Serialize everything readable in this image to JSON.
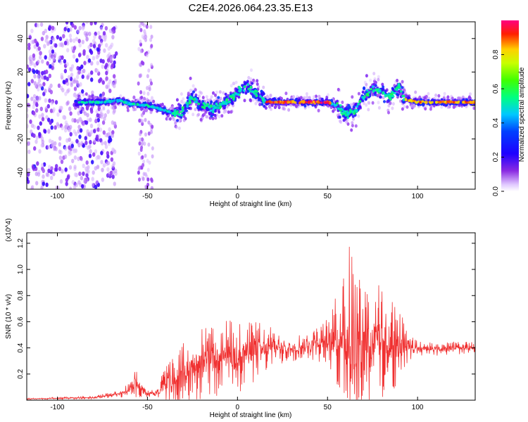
{
  "chart_data": [
    {
      "type": "heatmap",
      "title": "C2E4.2026.064.23.35.E13",
      "xlabel": "Height of straight line (km)",
      "ylabel": "Frequency (Hz)",
      "xlim": [
        -117,
        132
      ],
      "ylim": [
        -50,
        50
      ],
      "xticks": [
        -100,
        -50,
        0,
        50,
        100
      ],
      "yticks": [
        -40,
        -20,
        0,
        20,
        40
      ],
      "colorbar": {
        "label": "Normalized spectral amplitude",
        "range": [
          0,
          1
        ],
        "ticks": [
          "0.0",
          "0.2",
          "0.4",
          "0.6",
          "0.8"
        ],
        "colors": [
          "#ffffff",
          "#c080ff",
          "#7000ff",
          "#0000ff",
          "#00ffff",
          "#00ff00",
          "#ffff00",
          "#ff0000",
          "#ff0080"
        ]
      },
      "ridge_profile": {
        "description_x_km": [
          -88,
          -75,
          -65,
          -60,
          -50,
          -40,
          -35,
          -30,
          -25,
          -20,
          -15,
          -10,
          -5,
          0,
          5,
          10,
          14,
          16,
          30,
          50,
          55,
          60,
          65,
          70,
          75,
          80,
          85,
          90,
          92,
          100,
          132
        ],
        "frequency_hz": [
          2,
          2,
          3,
          1,
          0,
          -3,
          -5,
          -3,
          5,
          0,
          -2,
          0,
          3,
          8,
          12,
          8,
          4,
          2,
          2,
          2,
          0,
          -5,
          -4,
          5,
          10,
          8,
          5,
          12,
          4,
          2,
          2
        ]
      }
    },
    {
      "type": "line",
      "series_name": "SNR",
      "xlabel": "Height of straight line (km)",
      "ylabel": "SNR (10 * v/v)",
      "y_scale_label": "(x10^4)",
      "xlim": [
        -117,
        132
      ],
      "ylim": [
        0,
        1.28
      ],
      "xticks": [
        -100,
        -50,
        0,
        50,
        100
      ],
      "ytick_labels": [
        "0.2",
        "0.4",
        "0.6",
        "0.8",
        "1.0",
        "1.2"
      ],
      "line_color": "#f03030",
      "envelope": {
        "x_km": [
          -117,
          -80,
          -65,
          -60,
          -57,
          -55,
          -50,
          -45,
          -40,
          -30,
          -20,
          -10,
          0,
          10,
          20,
          30,
          40,
          50,
          55,
          60,
          63,
          65,
          70,
          75,
          80,
          85,
          90,
          95,
          100,
          110,
          120,
          132
        ],
        "mean": [
          0.01,
          0.02,
          0.05,
          0.08,
          0.13,
          0.12,
          0.05,
          0.05,
          0.12,
          0.22,
          0.28,
          0.32,
          0.35,
          0.38,
          0.4,
          0.4,
          0.42,
          0.45,
          0.46,
          0.48,
          0.48,
          0.48,
          0.46,
          0.45,
          0.44,
          0.44,
          0.42,
          0.4,
          0.4,
          0.39,
          0.4,
          0.4
        ],
        "amplitude": [
          0.005,
          0.01,
          0.03,
          0.06,
          0.12,
          0.1,
          0.03,
          0.04,
          0.15,
          0.22,
          0.28,
          0.3,
          0.3,
          0.24,
          0.15,
          0.1,
          0.12,
          0.18,
          0.35,
          0.55,
          0.8,
          0.7,
          0.55,
          0.5,
          0.45,
          0.4,
          0.3,
          0.1,
          0.06,
          0.05,
          0.05,
          0.05
        ]
      }
    }
  ]
}
